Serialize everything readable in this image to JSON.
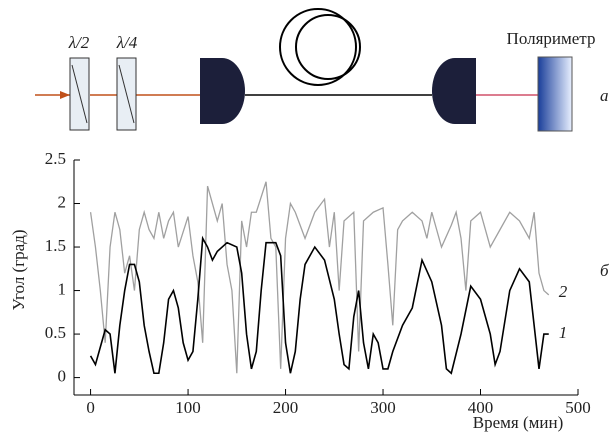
{
  "diagram": {
    "panel": "а",
    "labels": [
      "λ/2",
      "λ/4",
      "Поляриметр"
    ]
  },
  "chart_data": {
    "type": "line",
    "panel": "б",
    "xlabel": "Время (мин)",
    "ylabel": "Угол (град)",
    "xlim": [
      -17,
      500
    ],
    "ylim": [
      -0.2,
      2.5
    ],
    "xticks": [
      0,
      100,
      200,
      300,
      400,
      500
    ],
    "yticks": [
      0,
      0.5,
      1.0,
      1.5,
      2.0,
      2.5
    ],
    "series": [
      {
        "name": "1",
        "color": "#000000",
        "x": [
          0,
          5,
          10,
          15,
          20,
          25,
          30,
          35,
          40,
          45,
          50,
          55,
          60,
          65,
          70,
          75,
          80,
          85,
          90,
          95,
          100,
          105,
          110,
          115,
          120,
          125,
          130,
          140,
          150,
          155,
          160,
          165,
          170,
          175,
          180,
          190,
          195,
          200,
          205,
          210,
          215,
          220,
          230,
          240,
          250,
          255,
          260,
          265,
          270,
          275,
          280,
          285,
          290,
          295,
          300,
          305,
          310,
          320,
          330,
          340,
          350,
          360,
          365,
          370,
          380,
          390,
          400,
          410,
          415,
          420,
          430,
          440,
          450,
          455,
          460,
          465,
          470
        ],
        "values": [
          0.25,
          0.15,
          0.35,
          0.55,
          0.5,
          0.05,
          0.6,
          1.0,
          1.3,
          1.3,
          1.1,
          0.6,
          0.3,
          0.05,
          0.05,
          0.4,
          0.9,
          1.0,
          0.8,
          0.4,
          0.2,
          0.3,
          0.9,
          1.6,
          1.5,
          1.35,
          1.45,
          1.55,
          1.5,
          1.2,
          0.5,
          0.1,
          0.3,
          1.0,
          1.55,
          1.55,
          1.4,
          0.4,
          0.05,
          0.3,
          0.9,
          1.3,
          1.5,
          1.35,
          0.9,
          0.5,
          0.15,
          0.1,
          0.7,
          1.0,
          0.4,
          0.1,
          0.5,
          0.4,
          0.1,
          0.1,
          0.3,
          0.6,
          0.8,
          1.35,
          1.1,
          0.6,
          0.1,
          0.05,
          0.5,
          1.05,
          0.9,
          0.5,
          0.15,
          0.3,
          1.0,
          1.25,
          1.1,
          0.6,
          0.1,
          0.5,
          0.5
        ]
      },
      {
        "name": "2",
        "color": "#a0a0a0",
        "x": [
          0,
          5,
          10,
          15,
          20,
          25,
          30,
          35,
          40,
          45,
          50,
          55,
          60,
          65,
          70,
          75,
          80,
          85,
          90,
          100,
          105,
          110,
          115,
          120,
          125,
          130,
          135,
          140,
          145,
          150,
          155,
          160,
          165,
          170,
          180,
          185,
          190,
          195,
          200,
          205,
          210,
          220,
          230,
          240,
          245,
          250,
          255,
          260,
          270,
          275,
          280,
          290,
          300,
          305,
          310,
          315,
          320,
          330,
          340,
          345,
          350,
          355,
          360,
          370,
          375,
          380,
          385,
          390,
          400,
          410,
          420,
          430,
          440,
          450,
          455,
          460,
          465,
          470
        ],
        "values": [
          1.9,
          1.5,
          1.0,
          0.4,
          1.5,
          1.9,
          1.7,
          1.2,
          1.4,
          1.0,
          1.7,
          1.9,
          1.7,
          1.6,
          1.9,
          1.6,
          1.8,
          1.9,
          1.5,
          1.85,
          1.4,
          1.1,
          0.4,
          2.2,
          2.0,
          1.8,
          2.0,
          1.3,
          1.0,
          0.05,
          1.8,
          1.5,
          1.9,
          1.9,
          2.25,
          1.6,
          1.5,
          0.1,
          1.6,
          2.0,
          1.9,
          1.6,
          1.9,
          2.05,
          1.5,
          1.9,
          1.0,
          1.8,
          1.9,
          0.3,
          1.8,
          1.9,
          1.95,
          1.3,
          0.6,
          1.7,
          1.8,
          1.9,
          1.8,
          1.6,
          1.9,
          1.7,
          1.5,
          1.75,
          1.9,
          1.6,
          1.0,
          1.8,
          1.9,
          1.5,
          1.7,
          1.9,
          1.8,
          1.6,
          1.9,
          1.2,
          1.0,
          0.95
        ]
      }
    ]
  }
}
